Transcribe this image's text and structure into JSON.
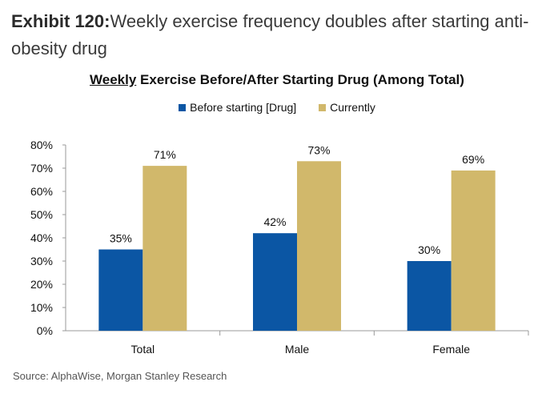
{
  "exhibit": {
    "label": "Exhibit 120:",
    "text": "Weekly exercise frequency doubles after starting anti-obesity drug"
  },
  "source": "Source: AlphaWise, Morgan Stanley Research",
  "chart_data": {
    "type": "bar",
    "title_underlined": "Weekly",
    "title_rest": " Exercise Before/After Starting Drug (Among Total)",
    "categories": [
      "Total",
      "Male",
      "Female"
    ],
    "series": [
      {
        "name": "Before starting [Drug]",
        "values": [
          35,
          42,
          30
        ],
        "color": "#0b56a4"
      },
      {
        "name": "Currently",
        "values": [
          71,
          73,
          69
        ],
        "color": "#d1b86b"
      }
    ],
    "ylim": [
      0,
      80
    ],
    "yticks": [
      "0%",
      "10%",
      "20%",
      "30%",
      "40%",
      "50%",
      "60%",
      "70%",
      "80%"
    ],
    "value_suffix": "%",
    "legend_position": "top",
    "grid": false
  }
}
